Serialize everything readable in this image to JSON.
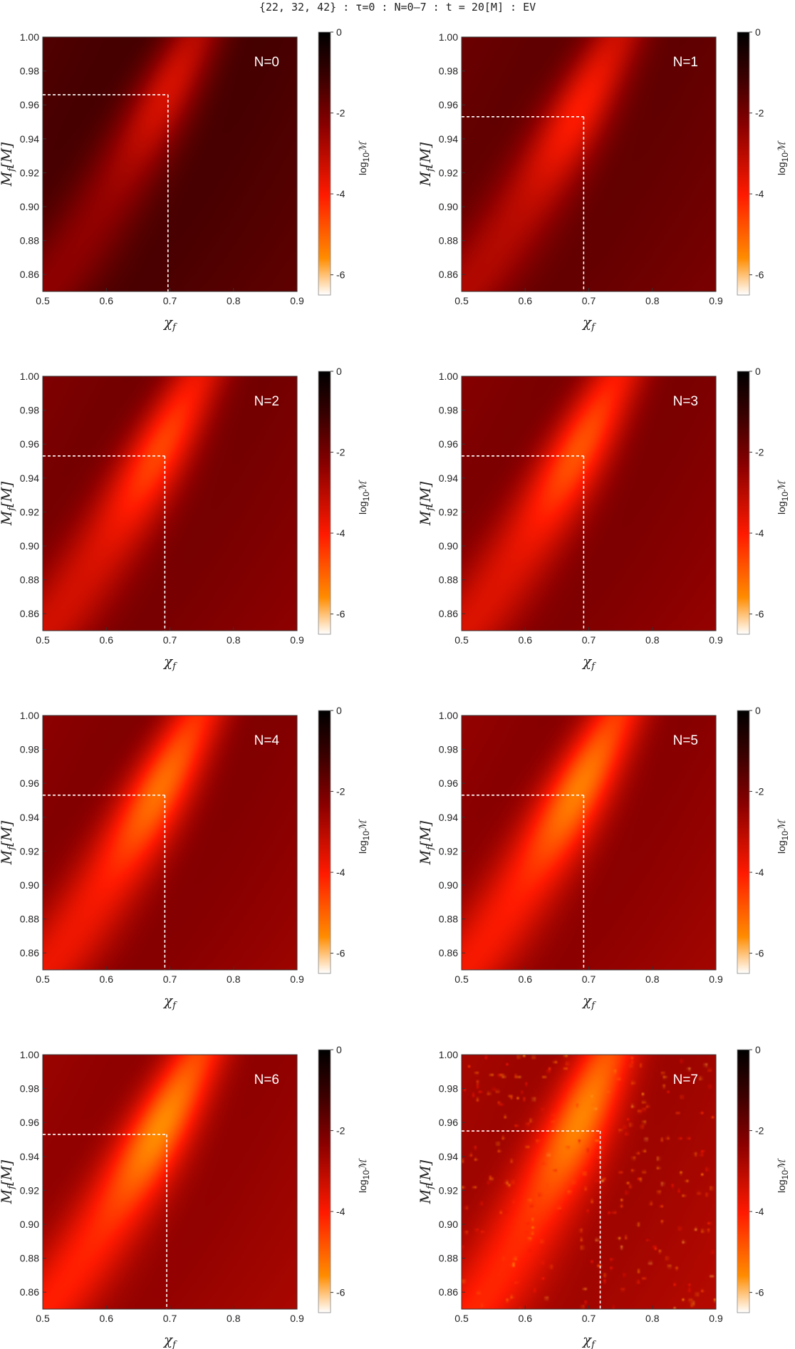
{
  "figure_title": "{22, 32, 42} : τ=0 : N=0–7 : t = 20[M] : EV",
  "colors": {
    "max": "#000000",
    "high": "#3a0000",
    "mid": "#8b0000",
    "low": "#ff1a00",
    "lower": "#ff8c00",
    "min": "#ffffff",
    "guide": "#ffffff"
  },
  "chart_data": [
    {
      "type": "heatmap",
      "panel_label": "N=0",
      "xlabel": "χ",
      "xlabel_sub": "f",
      "ylabel": "M",
      "ylabel_sub": "f",
      "ylabel_unit": "[M]",
      "xlim": [
        0.5,
        0.9
      ],
      "ylim": [
        0.85,
        1.0
      ],
      "x_ticks": [
        "0.5",
        "0.6",
        "0.7",
        "0.8",
        "0.9"
      ],
      "y_ticks": [
        "0.86",
        "0.88",
        "0.90",
        "0.92",
        "0.94",
        "0.96",
        "0.98",
        "1.00"
      ],
      "best_fit": {
        "chi_f": 0.697,
        "m_f": 0.966
      },
      "colorbar": {
        "label": "log",
        "label_sub": "10",
        "label_sym": "ℳ",
        "ticks": [
          "0",
          "-2",
          "-4",
          "-6"
        ],
        "range": [
          -6.5,
          0
        ]
      },
      "valley": {
        "chi_at_bottom": 0.5,
        "chi_at_top": 0.74,
        "min_log10": -3.4,
        "background_log10": -1.1
      }
    },
    {
      "type": "heatmap",
      "panel_label": "N=1",
      "xlabel": "χ",
      "xlabel_sub": "f",
      "ylabel": "M",
      "ylabel_sub": "f",
      "ylabel_unit": "[M]",
      "xlim": [
        0.5,
        0.9
      ],
      "ylim": [
        0.85,
        1.0
      ],
      "x_ticks": [
        "0.5",
        "0.6",
        "0.7",
        "0.8",
        "0.9"
      ],
      "y_ticks": [
        "0.86",
        "0.88",
        "0.90",
        "0.92",
        "0.94",
        "0.96",
        "0.98",
        "1.00"
      ],
      "best_fit": {
        "chi_f": 0.692,
        "m_f": 0.953
      },
      "colorbar": {
        "label": "log",
        "label_sub": "10",
        "label_sym": "ℳ",
        "ticks": [
          "0",
          "-2",
          "-4",
          "-6"
        ],
        "range": [
          -6.5,
          0
        ]
      },
      "valley": {
        "chi_at_bottom": 0.5,
        "chi_at_top": 0.745,
        "min_log10": -4.0,
        "background_log10": -1.5
      }
    },
    {
      "type": "heatmap",
      "panel_label": "N=2",
      "xlabel": "χ",
      "xlabel_sub": "f",
      "ylabel": "M",
      "ylabel_sub": "f",
      "ylabel_unit": "[M]",
      "xlim": [
        0.5,
        0.9
      ],
      "ylim": [
        0.85,
        1.0
      ],
      "x_ticks": [
        "0.5",
        "0.6",
        "0.7",
        "0.8",
        "0.9"
      ],
      "y_ticks": [
        "0.86",
        "0.88",
        "0.90",
        "0.92",
        "0.94",
        "0.96",
        "0.98",
        "1.00"
      ],
      "best_fit": {
        "chi_f": 0.692,
        "m_f": 0.953
      },
      "colorbar": {
        "label": "log",
        "label_sub": "10",
        "label_sym": "ℳ",
        "ticks": [
          "0",
          "-2",
          "-4",
          "-6"
        ],
        "range": [
          -6.5,
          0
        ]
      },
      "valley": {
        "chi_at_bottom": 0.5,
        "chi_at_top": 0.745,
        "min_log10": -4.6,
        "background_log10": -1.8
      }
    },
    {
      "type": "heatmap",
      "panel_label": "N=3",
      "xlabel": "χ",
      "xlabel_sub": "f",
      "ylabel": "M",
      "ylabel_sub": "f",
      "ylabel_unit": "[M]",
      "xlim": [
        0.5,
        0.9
      ],
      "ylim": [
        0.85,
        1.0
      ],
      "x_ticks": [
        "0.5",
        "0.6",
        "0.7",
        "0.8",
        "0.9"
      ],
      "y_ticks": [
        "0.86",
        "0.88",
        "0.90",
        "0.92",
        "0.94",
        "0.96",
        "0.98",
        "1.00"
      ],
      "best_fit": {
        "chi_f": 0.692,
        "m_f": 0.953
      },
      "colorbar": {
        "label": "log",
        "label_sub": "10",
        "label_sym": "ℳ",
        "ticks": [
          "0",
          "-2",
          "-4",
          "-6"
        ],
        "range": [
          -6.5,
          0
        ]
      },
      "valley": {
        "chi_at_bottom": 0.5,
        "chi_at_top": 0.745,
        "min_log10": -4.8,
        "background_log10": -1.9
      }
    },
    {
      "type": "heatmap",
      "panel_label": "N=4",
      "xlabel": "χ",
      "xlabel_sub": "f",
      "ylabel": "M",
      "ylabel_sub": "f",
      "ylabel_unit": "[M]",
      "xlim": [
        0.5,
        0.9
      ],
      "ylim": [
        0.85,
        1.0
      ],
      "x_ticks": [
        "0.5",
        "0.6",
        "0.7",
        "0.8",
        "0.9"
      ],
      "y_ticks": [
        "0.86",
        "0.88",
        "0.90",
        "0.92",
        "0.94",
        "0.96",
        "0.98",
        "1.00"
      ],
      "best_fit": {
        "chi_f": 0.692,
        "m_f": 0.953
      },
      "colorbar": {
        "label": "log",
        "label_sub": "10",
        "label_sym": "ℳ",
        "ticks": [
          "0",
          "-2",
          "-4",
          "-6"
        ],
        "range": [
          -6.5,
          0
        ]
      },
      "valley": {
        "chi_at_bottom": 0.5,
        "chi_at_top": 0.745,
        "min_log10": -5.2,
        "background_log10": -2.0
      }
    },
    {
      "type": "heatmap",
      "panel_label": "N=5",
      "xlabel": "χ",
      "xlabel_sub": "f",
      "ylabel": "M",
      "ylabel_sub": "f",
      "ylabel_unit": "[M]",
      "xlim": [
        0.5,
        0.9
      ],
      "ylim": [
        0.85,
        1.0
      ],
      "x_ticks": [
        "0.5",
        "0.6",
        "0.7",
        "0.8",
        "0.9"
      ],
      "y_ticks": [
        "0.86",
        "0.88",
        "0.90",
        "0.92",
        "0.94",
        "0.96",
        "0.98",
        "1.00"
      ],
      "best_fit": {
        "chi_f": 0.692,
        "m_f": 0.953
      },
      "colorbar": {
        "label": "log",
        "label_sub": "10",
        "label_sym": "ℳ",
        "ticks": [
          "0",
          "-2",
          "-4",
          "-6"
        ],
        "range": [
          -6.5,
          0
        ]
      },
      "valley": {
        "chi_at_bottom": 0.5,
        "chi_at_top": 0.745,
        "min_log10": -5.4,
        "background_log10": -2.1
      }
    },
    {
      "type": "heatmap",
      "panel_label": "N=6",
      "xlabel": "χ",
      "xlabel_sub": "f",
      "ylabel": "M",
      "ylabel_sub": "f",
      "ylabel_unit": "[M]",
      "xlim": [
        0.5,
        0.9
      ],
      "ylim": [
        0.85,
        1.0
      ],
      "x_ticks": [
        "0.5",
        "0.6",
        "0.7",
        "0.8",
        "0.9"
      ],
      "y_ticks": [
        "0.86",
        "0.88",
        "0.90",
        "0.92",
        "0.94",
        "0.96",
        "0.98",
        "1.00"
      ],
      "best_fit": {
        "chi_f": 0.695,
        "m_f": 0.953
      },
      "colorbar": {
        "label": "log",
        "label_sub": "10",
        "label_sym": "ℳ",
        "ticks": [
          "0",
          "-2",
          "-4",
          "-6"
        ],
        "range": [
          -6.5,
          0
        ]
      },
      "valley": {
        "chi_at_bottom": 0.5,
        "chi_at_top": 0.745,
        "min_log10": -5.6,
        "background_log10": -2.2
      }
    },
    {
      "type": "heatmap",
      "panel_label": "N=7",
      "xlabel": "χ",
      "xlabel_sub": "f",
      "ylabel": "M",
      "ylabel_sub": "f",
      "ylabel_unit": "[M]",
      "xlim": [
        0.5,
        0.9
      ],
      "ylim": [
        0.85,
        1.0
      ],
      "x_ticks": [
        "0.5",
        "0.6",
        "0.7",
        "0.8",
        "0.9"
      ],
      "y_ticks": [
        "0.86",
        "0.88",
        "0.90",
        "0.92",
        "0.94",
        "0.96",
        "0.98",
        "1.00"
      ],
      "best_fit": {
        "chi_f": 0.718,
        "m_f": 0.955
      },
      "colorbar": {
        "label": "log",
        "label_sub": "10",
        "label_sym": "ℳ",
        "ticks": [
          "0",
          "-2",
          "-4",
          "-6"
        ],
        "range": [
          -6.5,
          0
        ]
      },
      "valley": {
        "chi_at_bottom": 0.52,
        "chi_at_top": 0.73,
        "min_log10": -5.6,
        "background_log10": -2.4,
        "noisy": true
      }
    }
  ]
}
